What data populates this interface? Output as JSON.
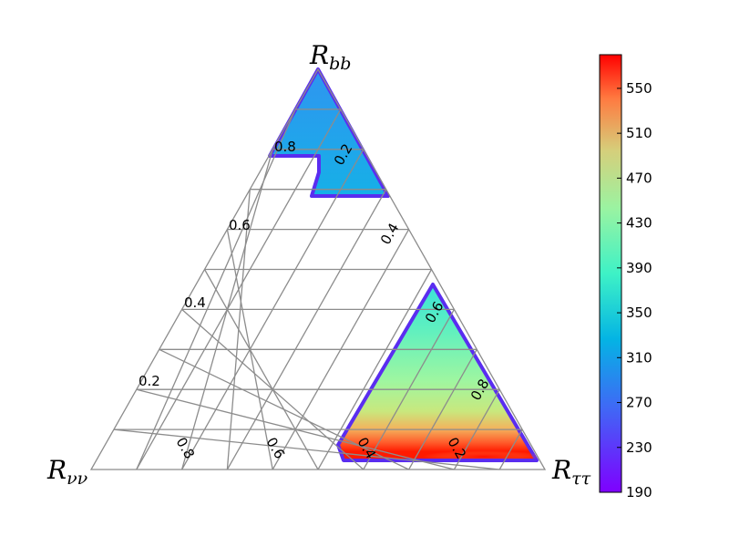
{
  "chart_data": {
    "type": "heatmap",
    "subtype": "ternary",
    "corners": {
      "top": {
        "main": "R",
        "sub": "bb"
      },
      "left": {
        "main": "R",
        "sub": "νν"
      },
      "right": {
        "main": "R",
        "sub": "ττ"
      }
    },
    "axis_tick_labels": {
      "left_edge": [
        "0.2",
        "0.4",
        "0.6",
        "0.8"
      ],
      "right_edge": [
        "0.2",
        "0.4",
        "0.6",
        "0.8"
      ],
      "bottom_edge": [
        "0.2",
        "0.4",
        "0.6",
        "0.8"
      ]
    },
    "colorbar": {
      "min": 190,
      "max": 580,
      "ticks": [
        "190",
        "230",
        "270",
        "310",
        "350",
        "390",
        "430",
        "470",
        "510",
        "550"
      ]
    },
    "grid": true,
    "grid_step": 0.1,
    "regions": [
      {
        "name": "upper",
        "range": "approx 270-280"
      },
      {
        "name": "lower-right",
        "range": "approx 230-580"
      }
    ]
  }
}
